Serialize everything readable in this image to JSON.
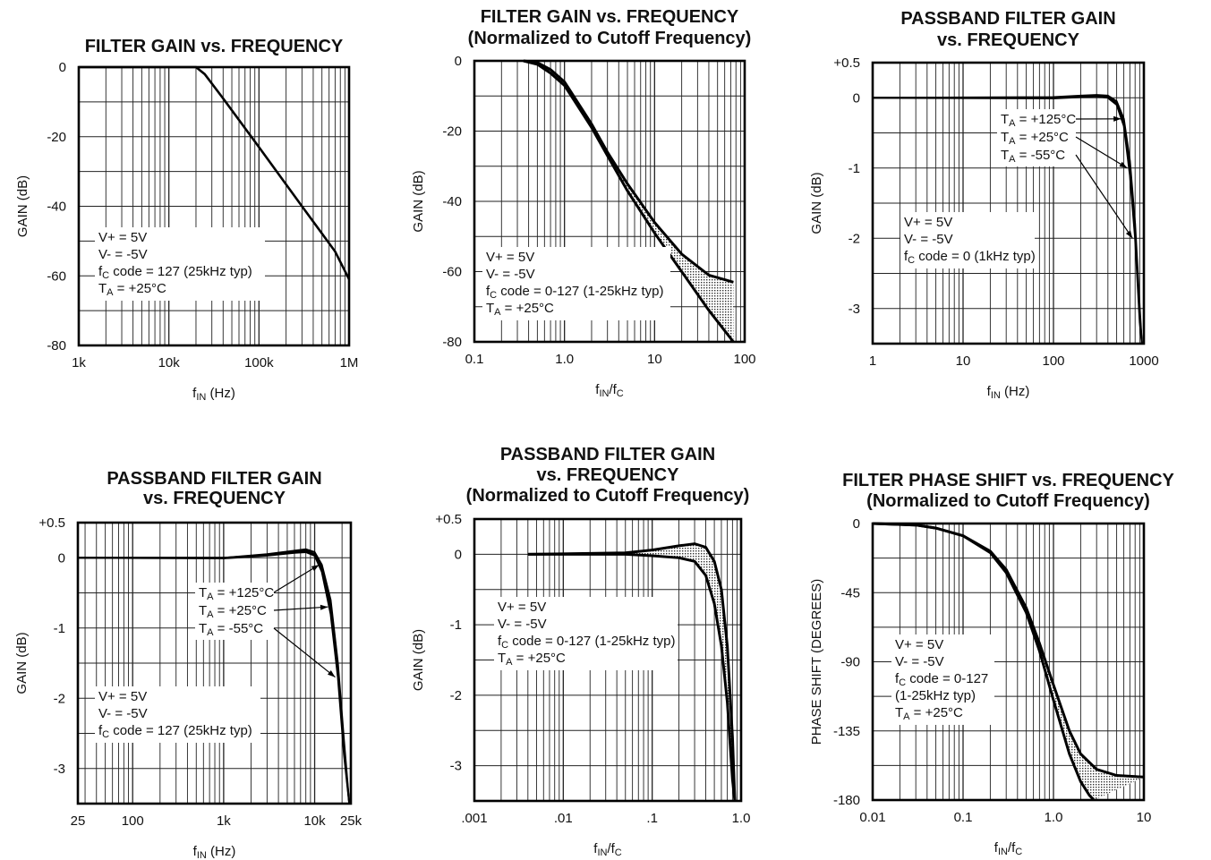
{
  "chart_data": [
    {
      "type": "line",
      "title_lines": [
        "FILTER GAIN vs. FREQUENCY"
      ],
      "xlabel": "fIN (Hz)",
      "xlabel_main": "f",
      "xlabel_sub": "IN",
      "xlabel_rest": " (Hz)",
      "ylabel": "GAIN (dB)",
      "xscale": "log",
      "xlim": [
        1000,
        1000000
      ],
      "ylim": [
        -80,
        0
      ],
      "grid": true,
      "xticks": [
        {
          "v": 1000,
          "label": "1k"
        },
        {
          "v": 10000,
          "label": "10k"
        },
        {
          "v": 100000,
          "label": "100k"
        },
        {
          "v": 1000000,
          "label": "1M"
        }
      ],
      "yticks": [
        {
          "v": 0,
          "label": "0"
        },
        {
          "v": -20,
          "label": "-20"
        },
        {
          "v": -40,
          "label": "-40"
        },
        {
          "v": -60,
          "label": "-60"
        },
        {
          "v": -80,
          "label": "-80"
        }
      ],
      "annotation_lines": [
        "V+ = 5V",
        "V- = -5V",
        "fC code = 127 (25kHz typ)",
        "TA = +25°C"
      ],
      "series": [
        {
          "x": [
            1000,
            20000,
            25000,
            40000,
            100000,
            300000,
            700000,
            1000000
          ],
          "y": [
            0,
            0,
            -2,
            -9,
            -23,
            -40,
            -53,
            -61
          ]
        }
      ]
    },
    {
      "type": "area",
      "title_lines": [
        "FILTER GAIN vs. FREQUENCY",
        "(Normalized to Cutoff Frequency)"
      ],
      "xlabel": "fIN/fC",
      "xlabel_main": "f",
      "xlabel_sub": "IN",
      "xlabel_rest": "/f",
      "xlabel_sub2": "C",
      "ylabel": "GAIN (dB)",
      "xscale": "log",
      "xlim": [
        0.1,
        100
      ],
      "ylim": [
        -80,
        0
      ],
      "grid": true,
      "xticks": [
        {
          "v": 0.1,
          "label": "0.1"
        },
        {
          "v": 1,
          "label": "1.0"
        },
        {
          "v": 10,
          "label": "10"
        },
        {
          "v": 100,
          "label": "100"
        }
      ],
      "yticks": [
        {
          "v": 0,
          "label": "0"
        },
        {
          "v": -20,
          "label": "-20"
        },
        {
          "v": -40,
          "label": "-40"
        },
        {
          "v": -60,
          "label": "-60"
        },
        {
          "v": -80,
          "label": "-80"
        }
      ],
      "annotation_lines": [
        "V+ = 5V",
        "V- = -5V",
        "fC code = 0-127 (1-25kHz typ)",
        "TA = +25°C"
      ],
      "band_upper": {
        "x": [
          0.35,
          0.5,
          0.7,
          1.0,
          1.5,
          2,
          3,
          5,
          10,
          20,
          40,
          75
        ],
        "y": [
          0,
          -0.5,
          -2.5,
          -6,
          -13,
          -18,
          -26,
          -35,
          -46,
          -55,
          -61,
          -63
        ]
      },
      "band_lower": {
        "x": [
          0.35,
          0.5,
          0.7,
          1.0,
          1.5,
          2,
          3,
          5,
          10,
          20,
          40,
          75
        ],
        "y": [
          0,
          -1,
          -3.5,
          -7,
          -14,
          -19,
          -27,
          -37,
          -49,
          -60,
          -71,
          -80
        ]
      }
    },
    {
      "type": "line",
      "title_lines": [
        "PASSBAND FILTER GAIN",
        "vs. FREQUENCY"
      ],
      "xlabel": "fIN (Hz)",
      "xlabel_main": "f",
      "xlabel_sub": "IN",
      "xlabel_rest": " (Hz)",
      "ylabel": "GAIN (dB)",
      "xscale": "log",
      "xlim": [
        1,
        1000
      ],
      "ylim": [
        -3.5,
        0.5
      ],
      "grid": true,
      "xticks": [
        {
          "v": 1,
          "label": "1"
        },
        {
          "v": 10,
          "label": "10"
        },
        {
          "v": 100,
          "label": "100"
        },
        {
          "v": 1000,
          "label": "1000"
        }
      ],
      "yticks": [
        {
          "v": 0.5,
          "label": "+0.5"
        },
        {
          "v": 0,
          "label": "0"
        },
        {
          "v": -1,
          "label": "-1"
        },
        {
          "v": -2,
          "label": "-2"
        },
        {
          "v": -3,
          "label": "-3"
        }
      ],
      "annotation_lines": [
        "V+ = 5V",
        "V- = -5V",
        "fC code = 0 (1kHz typ)"
      ],
      "temp_labels": [
        "TA = +125°C",
        "TA = +25°C",
        "TA = -55°C"
      ],
      "series": [
        {
          "x": [
            1,
            100,
            200,
            300,
            400,
            500,
            600,
            700,
            800,
            900,
            950
          ],
          "y": [
            0,
            0.01,
            0.03,
            0.04,
            0.03,
            -0.05,
            -0.3,
            -0.9,
            -1.8,
            -3.0,
            -3.5
          ]
        },
        {
          "x": [
            1,
            100,
            200,
            300,
            400,
            500,
            600,
            700,
            800,
            900,
            950
          ],
          "y": [
            0,
            0.0,
            0.02,
            0.03,
            0.01,
            -0.08,
            -0.35,
            -1.0,
            -1.9,
            -3.1,
            -3.5
          ]
        },
        {
          "x": [
            1,
            100,
            200,
            300,
            400,
            500,
            600,
            700,
            800,
            900,
            950
          ],
          "y": [
            0,
            -0.01,
            0.01,
            0.02,
            0.0,
            -0.1,
            -0.4,
            -1.1,
            -2.0,
            -3.2,
            -3.5
          ]
        }
      ]
    },
    {
      "type": "line",
      "title_lines": [
        "PASSBAND FILTER GAIN",
        "vs. FREQUENCY"
      ],
      "xlabel": "fIN (Hz)",
      "xlabel_main": "f",
      "xlabel_sub": "IN",
      "xlabel_rest": " (Hz)",
      "ylabel": "GAIN (dB)",
      "xscale": "log",
      "xlim": [
        25,
        25000
      ],
      "ylim": [
        -3.5,
        0.5
      ],
      "grid": true,
      "xticks": [
        {
          "v": 25,
          "label": "25"
        },
        {
          "v": 100,
          "label": "100"
        },
        {
          "v": 1000,
          "label": "1k"
        },
        {
          "v": 10000,
          "label": "10k"
        },
        {
          "v": 25000,
          "label": "25k"
        }
      ],
      "yticks": [
        {
          "v": 0.5,
          "label": "+0.5"
        },
        {
          "v": 0,
          "label": "0"
        },
        {
          "v": -1,
          "label": "-1"
        },
        {
          "v": -2,
          "label": "-2"
        },
        {
          "v": -3,
          "label": "-3"
        }
      ],
      "annotation_lines": [
        "V+ = 5V",
        "V- = -5V",
        "fC code = 127 (25kHz typ)"
      ],
      "temp_labels": [
        "TA = +125°C",
        "TA = +25°C",
        "TA = -55°C"
      ],
      "series": [
        {
          "x": [
            25,
            1000,
            3000,
            6000,
            8000,
            10000,
            12000,
            15000,
            18000,
            21000,
            24000
          ],
          "y": [
            0,
            0.0,
            0.05,
            0.1,
            0.12,
            0.08,
            -0.1,
            -0.6,
            -1.5,
            -2.6,
            -3.5
          ]
        },
        {
          "x": [
            25,
            1000,
            3000,
            6000,
            8000,
            10000,
            12000,
            15000,
            18000,
            21000,
            24000
          ],
          "y": [
            0,
            0.0,
            0.04,
            0.09,
            0.1,
            0.05,
            -0.15,
            -0.7,
            -1.6,
            -2.7,
            -3.5
          ]
        },
        {
          "x": [
            25,
            1000,
            3000,
            6000,
            8000,
            10000,
            12000,
            15000,
            18000,
            21000,
            24000
          ],
          "y": [
            0,
            -0.01,
            0.03,
            0.07,
            0.08,
            0.03,
            -0.2,
            -0.8,
            -1.7,
            -2.8,
            -3.5
          ]
        }
      ]
    },
    {
      "type": "area",
      "title_lines": [
        "PASSBAND FILTER GAIN",
        "vs. FREQUENCY",
        "(Normalized to Cutoff Frequency)"
      ],
      "xlabel": "fIN/fC",
      "xlabel_main": "f",
      "xlabel_sub": "IN",
      "xlabel_rest": "/f",
      "xlabel_sub2": "C",
      "ylabel": "GAIN (dB)",
      "xscale": "log",
      "xlim": [
        0.001,
        1.0
      ],
      "ylim": [
        -3.5,
        0.5
      ],
      "grid": true,
      "xticks": [
        {
          "v": 0.001,
          "label": ".001"
        },
        {
          "v": 0.01,
          "label": ".01"
        },
        {
          "v": 0.1,
          "label": ".1"
        },
        {
          "v": 1.0,
          "label": "1.0"
        }
      ],
      "yticks": [
        {
          "v": 0.5,
          "label": "+0.5"
        },
        {
          "v": 0,
          "label": "0"
        },
        {
          "v": -1,
          "label": "-1"
        },
        {
          "v": -2,
          "label": "-2"
        },
        {
          "v": -3,
          "label": "-3"
        }
      ],
      "annotation_lines": [
        "V+ = 5V",
        "V- = -5V",
        "fC code = 0-127 (1-25kHz typ)",
        "TA = +25°C"
      ],
      "band_upper": {
        "x": [
          0.004,
          0.05,
          0.1,
          0.2,
          0.3,
          0.4,
          0.5,
          0.6,
          0.7,
          0.8,
          0.85
        ],
        "y": [
          0,
          0.02,
          0.06,
          0.12,
          0.15,
          0.1,
          -0.1,
          -0.5,
          -1.3,
          -2.6,
          -3.5
        ]
      },
      "band_lower": {
        "x": [
          0.004,
          0.05,
          0.1,
          0.2,
          0.3,
          0.4,
          0.5,
          0.6,
          0.7,
          0.8,
          0.85
        ],
        "y": [
          0,
          0.0,
          -0.02,
          -0.05,
          -0.1,
          -0.3,
          -0.7,
          -1.3,
          -2.1,
          -3.2,
          -3.5
        ]
      }
    },
    {
      "type": "area",
      "title_lines": [
        "FILTER PHASE SHIFT vs. FREQUENCY",
        "(Normalized to Cutoff Frequency)"
      ],
      "xlabel": "fIN/fC",
      "xlabel_main": "f",
      "xlabel_sub": "IN",
      "xlabel_rest": "/f",
      "xlabel_sub2": "C",
      "ylabel": "PHASE SHIFT (DEGREES)",
      "xscale": "log",
      "xlim": [
        0.01,
        10
      ],
      "ylim": [
        -180,
        0
      ],
      "grid": true,
      "xticks": [
        {
          "v": 0.01,
          "label": "0.01"
        },
        {
          "v": 0.1,
          "label": "0.1"
        },
        {
          "v": 1.0,
          "label": "1.0"
        },
        {
          "v": 10,
          "label": "10"
        }
      ],
      "yticks": [
        {
          "v": 0,
          "label": "0"
        },
        {
          "v": -45,
          "label": "-45"
        },
        {
          "v": -90,
          "label": "-90"
        },
        {
          "v": -135,
          "label": "-135"
        },
        {
          "v": -180,
          "label": "-180"
        }
      ],
      "annotation_lines": [
        "V+ = 5V",
        "V- = -5V",
        "fC code = 0-127",
        "(1-25kHz typ)",
        "TA = +25°C"
      ],
      "band_upper": {
        "x": [
          0.01,
          0.03,
          0.05,
          0.1,
          0.2,
          0.3,
          0.5,
          0.7,
          1.0,
          1.5,
          2,
          3,
          5,
          10
        ],
        "y": [
          0,
          -1,
          -3,
          -8,
          -18,
          -30,
          -55,
          -78,
          -105,
          -135,
          -150,
          -160,
          -164,
          -165
        ]
      },
      "band_lower": {
        "x": [
          0.01,
          0.03,
          0.05,
          0.1,
          0.2,
          0.3,
          0.5,
          0.7,
          1.0,
          1.5,
          2,
          2.5,
          2.8
        ],
        "y": [
          0,
          -1,
          -3,
          -8,
          -19,
          -32,
          -58,
          -83,
          -115,
          -150,
          -168,
          -177,
          -180
        ]
      }
    }
  ]
}
